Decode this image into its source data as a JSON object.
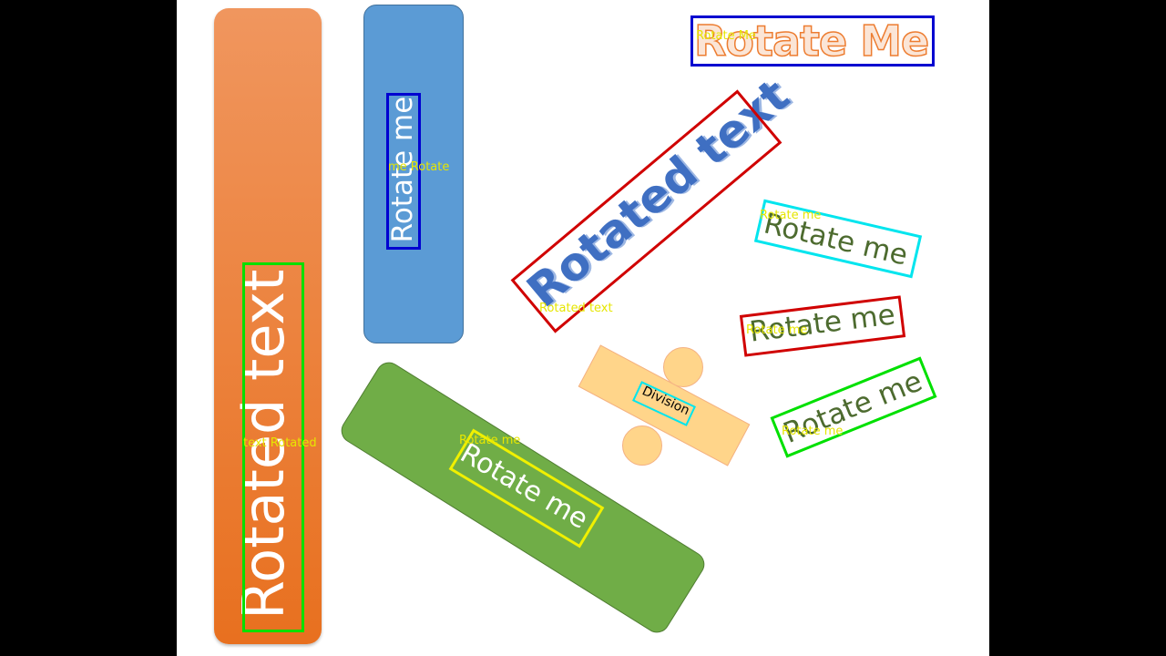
{
  "slide": {
    "texts": {
      "orange_bar": "Rotated text",
      "blue_bar": "Rotate me",
      "green_bar": "Rotate me",
      "top_right": "Rotate Me",
      "diagonal": "Rotated text",
      "division": "Division",
      "right_1": "Rotate me",
      "right_2": "Rotate me",
      "right_3": "Rotate me"
    },
    "detections": {
      "orange_bar": "text Rotated",
      "blue_bar": "me Rotate",
      "green_bar": "Rotate me",
      "top_right": "Rotate Me",
      "diagonal": "Rotated text",
      "right_1": "Rotate me",
      "right_2": "Rotate me",
      "right_3": "Rotate me"
    }
  },
  "colors": {
    "orange": "#ed7d31",
    "blue": "#5b9bd5",
    "green": "#70ad47",
    "peach": "#ffd58a",
    "text_dark_green": "#4d6b2f",
    "text_blue": "#3f6fc2",
    "label_yellow": "#e6e600",
    "box_green": "#00e000",
    "box_blue": "#0000d0",
    "box_red": "#d00000",
    "box_cyan": "#00e5ee",
    "box_yellow": "#f0f000"
  }
}
